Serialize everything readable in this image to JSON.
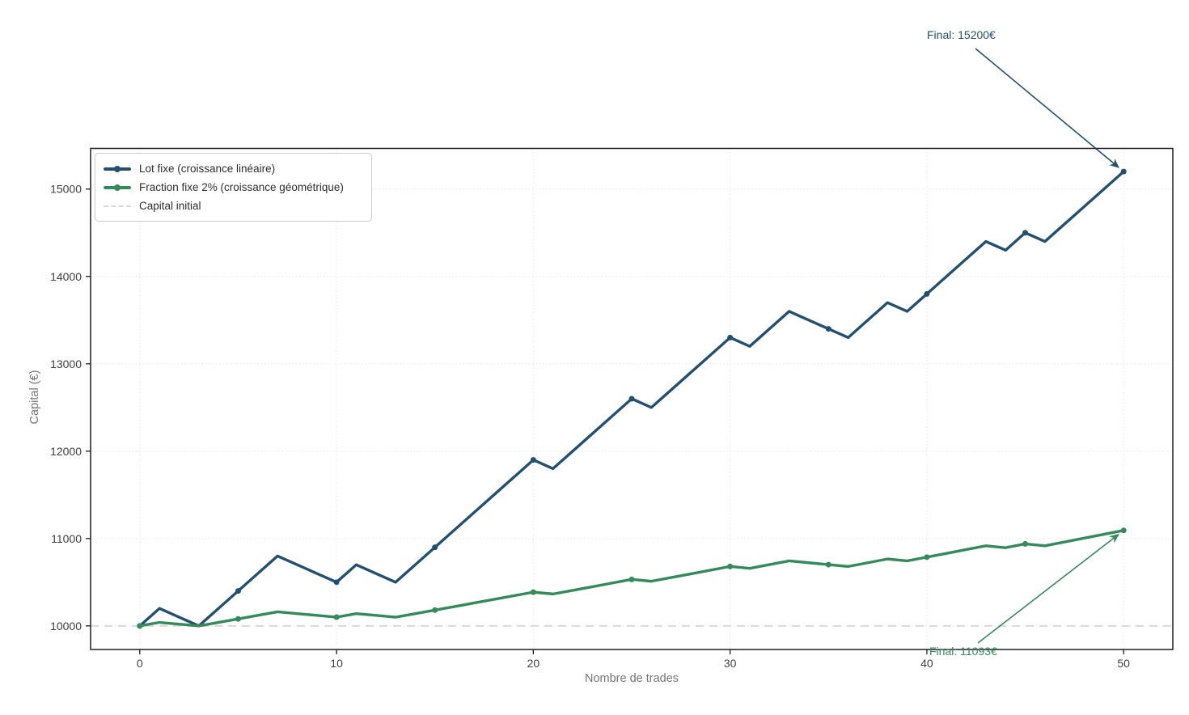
{
  "chart_data": {
    "type": "line",
    "xlabel": "Nombre de trades",
    "ylabel": "Capital (€)",
    "x_ticks": [
      0,
      10,
      20,
      30,
      40,
      50
    ],
    "y_ticks": [
      10000,
      11000,
      12000,
      13000,
      14000,
      15000
    ],
    "xlim": [
      -2.5,
      52.5
    ],
    "ylim": [
      9730,
      15465
    ],
    "grid": "dotted",
    "legend_position": "upper-left",
    "x": [
      0,
      1,
      2,
      3,
      4,
      5,
      6,
      7,
      8,
      9,
      10,
      11,
      12,
      13,
      14,
      15,
      16,
      17,
      18,
      19,
      20,
      21,
      22,
      23,
      24,
      25,
      26,
      27,
      28,
      29,
      30,
      31,
      32,
      33,
      34,
      35,
      36,
      37,
      38,
      39,
      40,
      41,
      42,
      43,
      44,
      45,
      46,
      47,
      48,
      49,
      50
    ],
    "series": [
      {
        "name": "Lot fixe (croissance linéaire)",
        "color": "#24506f",
        "marker_every": 5,
        "values": [
          10000,
          10200,
          10100,
          10000,
          10200,
          10400,
          10600,
          10800,
          10700,
          10600,
          10500,
          10700,
          10600,
          10500,
          10700,
          10900,
          11100,
          11300,
          11500,
          11700,
          11900,
          11800,
          12000,
          12200,
          12400,
          12600,
          12500,
          12700,
          12900,
          13100,
          13300,
          13200,
          13400,
          13600,
          13500,
          13400,
          13300,
          13500,
          13700,
          13600,
          13800,
          14000,
          14200,
          14400,
          14300,
          14500,
          14400,
          14600,
          14800,
          15000,
          15200
        ]
      },
      {
        "name": "Fraction fixe 2% (croissance géométrique)",
        "color": "#338a5b",
        "marker_every": 5,
        "values": [
          10000,
          10040,
          10019.92,
          9999.88,
          10039.88,
          10080.04,
          10120.36,
          10160.84,
          10140.52,
          10120.24,
          10100,
          10140.4,
          10120.12,
          10099.88,
          10140.28,
          10180.84,
          10221.56,
          10262.45,
          10303.5,
          10344.71,
          10386.09,
          10365.32,
          10406.78,
          10448.41,
          10490.2,
          10532.16,
          10511.1,
          10553.14,
          10595.35,
          10637.73,
          10680.28,
          10658.92,
          10701.56,
          10744.36,
          10722.87,
          10701.43,
          10680.02,
          10722.74,
          10765.64,
          10744.1,
          10787.08,
          10830.23,
          10873.55,
          10917.04,
          10895.21,
          10938.79,
          10916.91,
          10960.58,
          11004.42,
          11048.44,
          11092.63
        ]
      }
    ],
    "reference_line": {
      "label": "Capital initial",
      "value": 10000,
      "color": "#d9d9d9",
      "style": "dashed"
    },
    "annotations": [
      {
        "text": "Final: 15200€",
        "color": "#24506f",
        "target_x": 50,
        "target_y": 15200
      },
      {
        "text": "Final: 11093€",
        "color": "#338a5b",
        "target_x": 50,
        "target_y": 11092.63
      }
    ]
  },
  "style": {
    "spine_color": "#1f1f1f",
    "grid_color": "#e7e7e7",
    "tick_label_color": "#3f3f3f",
    "axis_label_color": "#757575"
  }
}
